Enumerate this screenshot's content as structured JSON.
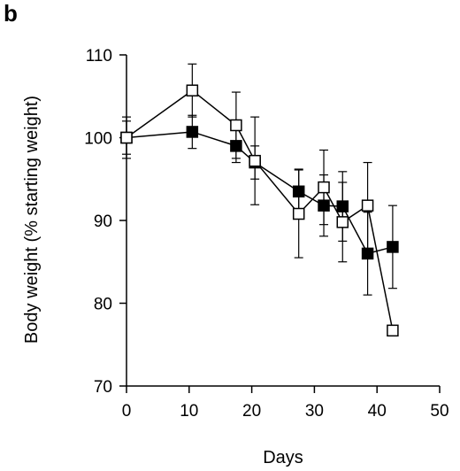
{
  "panel_label": "b",
  "chart_data": {
    "type": "line",
    "title": "",
    "xlabel": "Days",
    "ylabel": "Body weight (% starting weight)",
    "xlim": [
      0,
      50
    ],
    "ylim": [
      70,
      110
    ],
    "xticks": [
      0,
      10,
      20,
      30,
      40,
      50
    ],
    "yticks": [
      70,
      80,
      90,
      100,
      110
    ],
    "grid": false,
    "legend": "none",
    "series": [
      {
        "marker": "filled-square",
        "color": "#000000",
        "points": [
          {
            "x": 0,
            "y": 100,
            "err": 2.5
          },
          {
            "x": 10.5,
            "y": 100.7,
            "err": 2.0
          },
          {
            "x": 17.5,
            "y": 99.0,
            "err": 2.0
          },
          {
            "x": 20.5,
            "y": 97.0,
            "err": 2.0
          },
          {
            "x": 27.5,
            "y": 93.5,
            "err": 2.7
          },
          {
            "x": 31.5,
            "y": 91.8,
            "err": 3.7
          },
          {
            "x": 34.5,
            "y": 91.7,
            "err": 4.2
          },
          {
            "x": 38.5,
            "y": 86.0,
            "err": 5.0
          },
          {
            "x": 42.5,
            "y": 86.8,
            "err": 5.0
          }
        ]
      },
      {
        "marker": "open-square",
        "color": "#000000",
        "points": [
          {
            "x": 0,
            "y": 100,
            "err": 2.0
          },
          {
            "x": 10.5,
            "y": 105.7,
            "err": 3.2
          },
          {
            "x": 17.5,
            "y": 101.5,
            "err": 4.0
          },
          {
            "x": 20.5,
            "y": 97.2,
            "err": 5.3
          },
          {
            "x": 27.5,
            "y": 90.8,
            "err": 5.3
          },
          {
            "x": 31.5,
            "y": 94.0,
            "err": 4.5
          },
          {
            "x": 34.5,
            "y": 89.8,
            "err": 4.8
          },
          {
            "x": 38.5,
            "y": 91.8,
            "err": 5.2
          },
          {
            "x": 42.5,
            "y": 76.7,
            "err": 0
          }
        ]
      }
    ]
  }
}
